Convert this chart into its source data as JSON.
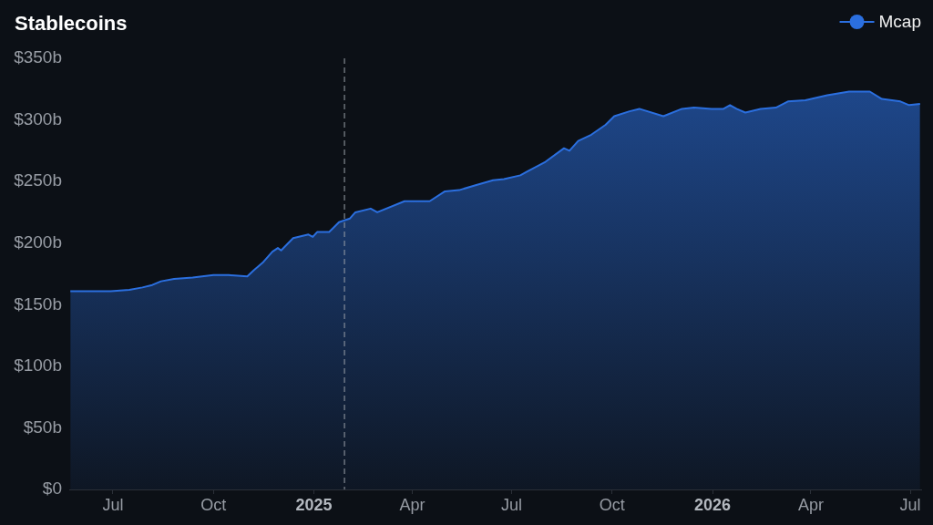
{
  "chart_data": {
    "type": "area",
    "title": "Stablecoins",
    "x": [
      "2024-05-23",
      "2024-06-12",
      "2024-06-29",
      "2024-07-16",
      "2024-07-28",
      "2024-08-06",
      "2024-08-14",
      "2024-08-26",
      "2024-09-12",
      "2024-10-01",
      "2024-10-15",
      "2024-11-01",
      "2024-11-07",
      "2024-11-15",
      "2024-11-24",
      "2024-11-29",
      "2024-12-02",
      "2024-12-13",
      "2024-12-27",
      "2024-12-31",
      "2025-01-04",
      "2025-01-15",
      "2025-01-24",
      "2025-02-03",
      "2025-02-08",
      "2025-02-22",
      "2025-02-28",
      "2025-03-25",
      "2025-04-17",
      "2025-05-01",
      "2025-05-14",
      "2025-05-29",
      "2025-06-14",
      "2025-06-24",
      "2025-07-09",
      "2025-07-15",
      "2025-08-01",
      "2025-08-18",
      "2025-08-23",
      "2025-08-31",
      "2025-09-12",
      "2025-09-25",
      "2025-10-03",
      "2025-10-17",
      "2025-10-26",
      "2025-11-17",
      "2025-12-04",
      "2025-12-15",
      "2025-12-31",
      "2026-01-11",
      "2026-01-17",
      "2026-01-23",
      "2026-01-31",
      "2026-02-14",
      "2026-02-28",
      "2026-03-11",
      "2026-03-27",
      "2026-04-16",
      "2026-05-06",
      "2026-05-25",
      "2026-06-05",
      "2026-06-22",
      "2026-06-30",
      "2026-07-10"
    ],
    "series": [
      {
        "name": "Mcap",
        "color": "#2b6fdf",
        "values": [
          161,
          161,
          161,
          162,
          164,
          166,
          169,
          171,
          172,
          174,
          174,
          173,
          178,
          184,
          193,
          196,
          194,
          204,
          207,
          205,
          209,
          209,
          217,
          220,
          225,
          228,
          225,
          234,
          234,
          242,
          243,
          247,
          251,
          252,
          255,
          258,
          266,
          277,
          275,
          283,
          288,
          296,
          303,
          307,
          309,
          303,
          309,
          310,
          309,
          309,
          312,
          309,
          306,
          309,
          310,
          315,
          316,
          320,
          323,
          323,
          317,
          315,
          312,
          313
        ]
      }
    ],
    "xlim": [
      "2024-05-22",
      "2026-07-11"
    ],
    "xticks": [
      {
        "value": "2024-07-01",
        "label": "Jul"
      },
      {
        "value": "2024-10-01",
        "label": "Oct"
      },
      {
        "value": "2025-01-01",
        "label": "2025"
      },
      {
        "value": "2025-04-01",
        "label": "Apr"
      },
      {
        "value": "2025-07-01",
        "label": "Jul"
      },
      {
        "value": "2025-10-01",
        "label": "Oct"
      },
      {
        "value": "2026-01-01",
        "label": "2026"
      },
      {
        "value": "2026-04-01",
        "label": "Apr"
      },
      {
        "value": "2026-07-01",
        "label": "Jul"
      }
    ],
    "ylim": [
      0,
      350
    ],
    "yticks": [
      {
        "value": 0,
        "label": "$0"
      },
      {
        "value": 50,
        "label": "$50b"
      },
      {
        "value": 100,
        "label": "$100b"
      },
      {
        "value": 150,
        "label": "$150b"
      },
      {
        "value": 200,
        "label": "$200b"
      },
      {
        "value": 250,
        "label": "$250b"
      },
      {
        "value": 300,
        "label": "$300b"
      },
      {
        "value": 350,
        "label": "$350b"
      }
    ],
    "ref_lines": [
      {
        "axis": "x",
        "value": "2025-01-29",
        "color": "#9aa0a8",
        "line_style": "dashed"
      }
    ],
    "grid": false,
    "legend": "top right"
  }
}
